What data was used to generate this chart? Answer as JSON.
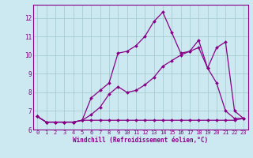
{
  "xlabel": "Windchill (Refroidissement éolien,°C)",
  "background_color": "#cce8f0",
  "grid_color": "#a0c8c8",
  "line_color": "#880088",
  "xlim": [
    -0.5,
    23.5
  ],
  "ylim": [
    6.0,
    12.7
  ],
  "xticks": [
    0,
    1,
    2,
    3,
    4,
    5,
    6,
    7,
    8,
    9,
    10,
    11,
    12,
    13,
    14,
    15,
    16,
    17,
    18,
    19,
    20,
    21,
    22,
    23
  ],
  "yticks": [
    6,
    7,
    8,
    9,
    10,
    11,
    12
  ],
  "series": [
    [
      6.7,
      6.4,
      6.4,
      6.4,
      6.4,
      6.5,
      7.7,
      8.1,
      8.5,
      10.1,
      10.2,
      10.5,
      11.0,
      11.8,
      12.3,
      11.2,
      10.1,
      10.2,
      10.8,
      9.3,
      10.4,
      10.7,
      7.0,
      6.6
    ],
    [
      6.7,
      6.4,
      6.4,
      6.4,
      6.4,
      6.5,
      6.8,
      7.2,
      7.9,
      8.3,
      8.0,
      8.1,
      8.4,
      8.8,
      9.4,
      9.7,
      10.0,
      10.2,
      10.4,
      9.3,
      8.5,
      7.0,
      6.6,
      6.6
    ],
    [
      6.7,
      6.4,
      6.4,
      6.4,
      6.4,
      6.5,
      6.5,
      6.5,
      6.5,
      6.5,
      6.5,
      6.5,
      6.5,
      6.5,
      6.5,
      6.5,
      6.5,
      6.5,
      6.5,
      6.5,
      6.5,
      6.5,
      6.5,
      6.6
    ]
  ],
  "tick_fontsize": 5,
  "xlabel_fontsize": 5.5,
  "marker_size": 2.0,
  "linewidth": 0.9
}
